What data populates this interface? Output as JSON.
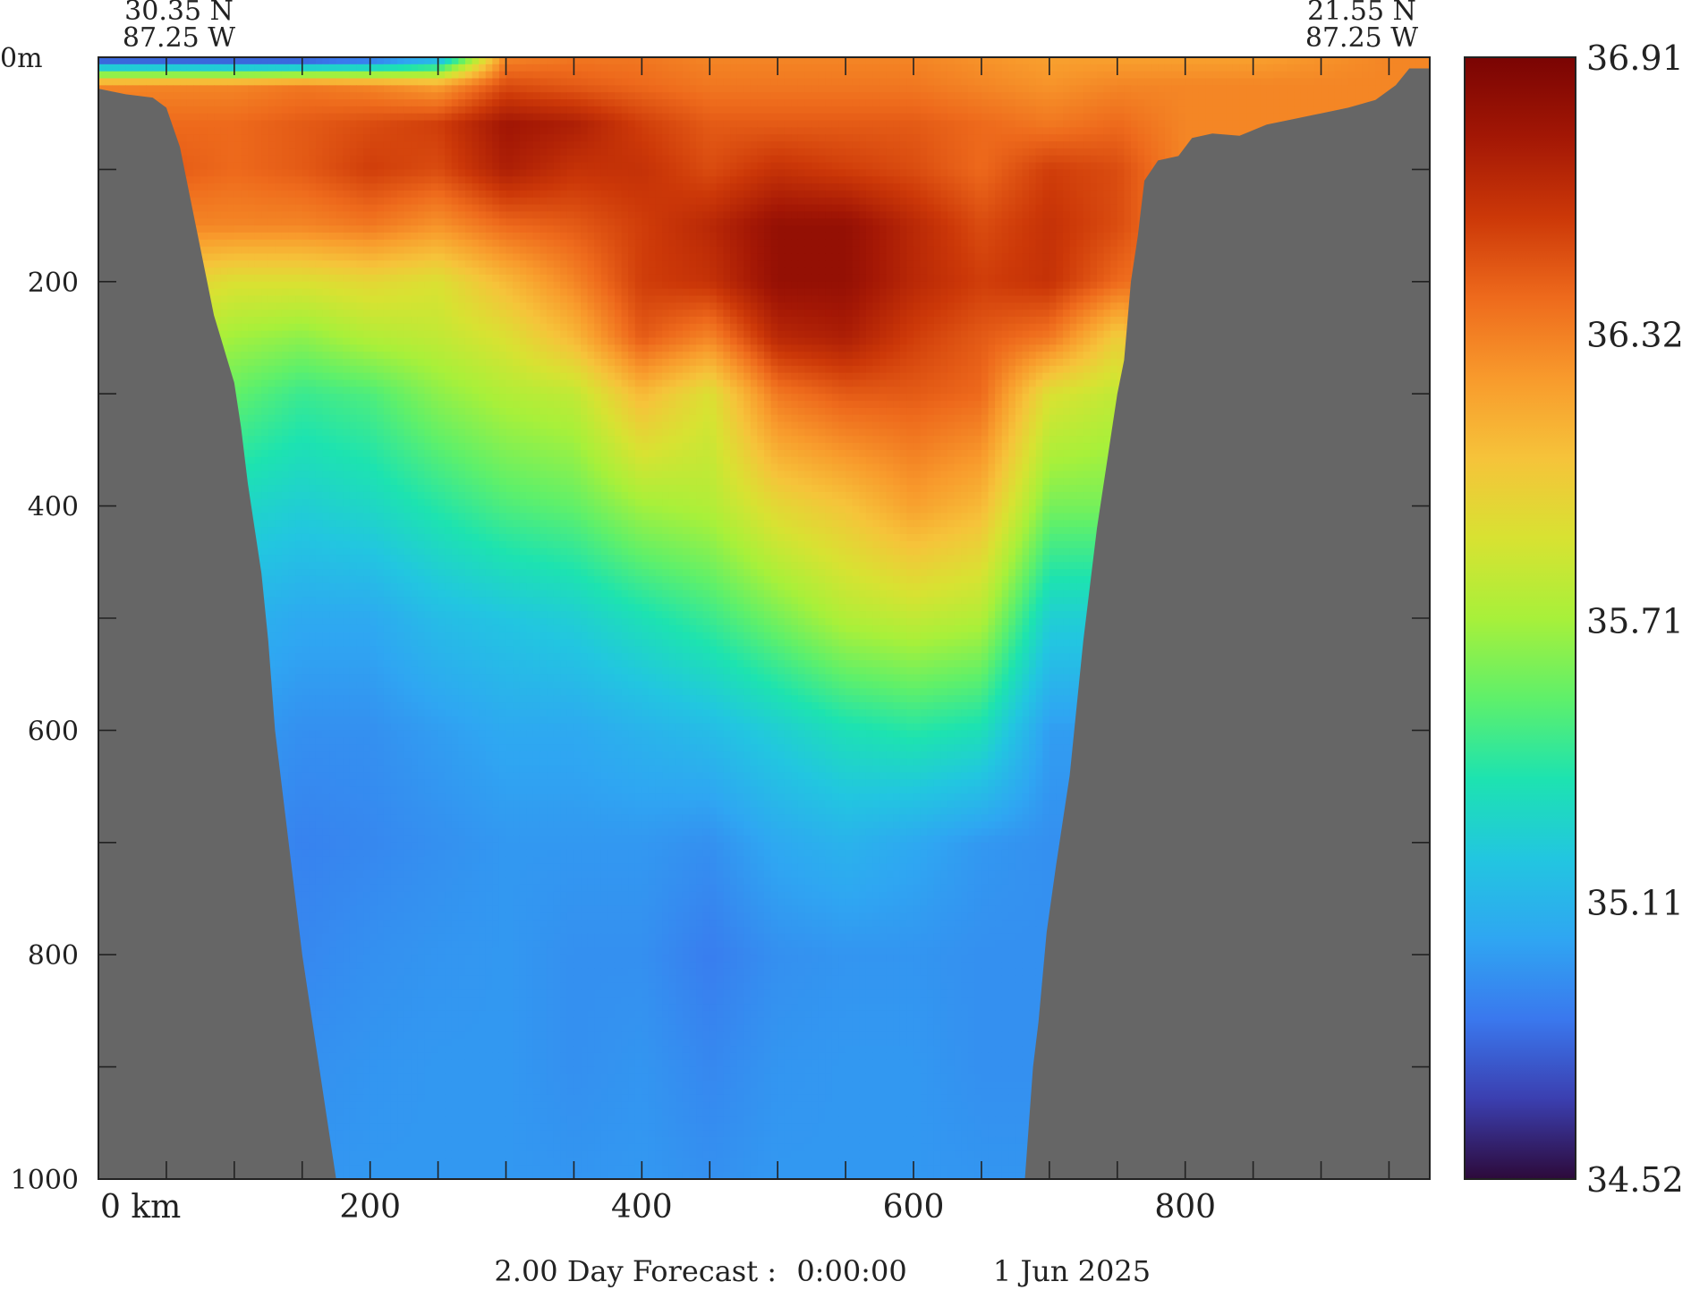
{
  "chart_data": {
    "type": "heatmap",
    "title": "",
    "xlabel": "",
    "ylabel": "",
    "x_unit_label": "km",
    "y_unit_label": "m",
    "xlim": [
      0,
      980
    ],
    "ylim": [
      0,
      1000
    ],
    "x_ticks": [
      0,
      200,
      400,
      600,
      800
    ],
    "x_minor_ticks": [
      50,
      100,
      150,
      250,
      300,
      350,
      450,
      500,
      550,
      650,
      700,
      750,
      850,
      900,
      950
    ],
    "y_ticks": [
      0,
      200,
      400,
      600,
      800,
      1000
    ],
    "y_minor_ticks": [
      100,
      300,
      500,
      700,
      900
    ],
    "endpoints": {
      "start": {
        "lat": "30.35 N",
        "lon": "87.25 W"
      },
      "end": {
        "lat": "21.55 N",
        "lon": "87.25 W"
      }
    },
    "colorbar": {
      "min": 34.52,
      "max": 36.91,
      "tick_labels": [
        "36.91",
        "36.32",
        "35.71",
        "35.11",
        "34.52"
      ],
      "tick_values": [
        36.91,
        36.32,
        35.71,
        35.11,
        34.52
      ],
      "colors": [
        "#2d0a3a",
        "#3b3fb0",
        "#3a78ee",
        "#2fa6f2",
        "#22c6e0",
        "#1de3b0",
        "#5ff06a",
        "#a8f03a",
        "#d8e232",
        "#f6c33a",
        "#f89a2c",
        "#ee6a1c",
        "#cc3808",
        "#a31705",
        "#7a0403"
      ]
    },
    "bottom_boundary_km_m": [
      [
        0,
        28
      ],
      [
        8,
        30
      ],
      [
        20,
        33
      ],
      [
        40,
        36
      ],
      [
        50,
        45
      ],
      [
        60,
        80
      ],
      [
        70,
        140
      ],
      [
        80,
        200
      ],
      [
        85,
        230
      ],
      [
        90,
        250
      ],
      [
        95,
        270
      ],
      [
        100,
        290
      ],
      [
        105,
        330
      ],
      [
        110,
        380
      ],
      [
        115,
        420
      ],
      [
        120,
        460
      ],
      [
        125,
        520
      ],
      [
        130,
        600
      ],
      [
        140,
        700
      ],
      [
        150,
        800
      ],
      [
        160,
        880
      ],
      [
        170,
        960
      ],
      [
        175,
        1000
      ]
    ],
    "right_boundary_km_m": [
      [
        682,
        1000
      ],
      [
        688,
        900
      ],
      [
        692,
        860
      ],
      [
        698,
        780
      ],
      [
        705,
        720
      ],
      [
        710,
        680
      ],
      [
        715,
        640
      ],
      [
        720,
        580
      ],
      [
        725,
        520
      ],
      [
        730,
        470
      ],
      [
        735,
        420
      ],
      [
        740,
        380
      ],
      [
        745,
        340
      ],
      [
        750,
        300
      ],
      [
        755,
        270
      ],
      [
        760,
        200
      ],
      [
        765,
        160
      ],
      [
        770,
        110
      ],
      [
        780,
        92
      ],
      [
        795,
        88
      ],
      [
        805,
        72
      ],
      [
        820,
        68
      ],
      [
        840,
        70
      ],
      [
        860,
        60
      ],
      [
        880,
        55
      ],
      [
        900,
        50
      ],
      [
        920,
        45
      ],
      [
        940,
        38
      ],
      [
        955,
        25
      ],
      [
        965,
        10
      ],
      [
        980,
        10
      ]
    ],
    "salinity_field": {
      "x_km": [
        0,
        50,
        100,
        150,
        200,
        250,
        300,
        350,
        400,
        450,
        500,
        550,
        600,
        650,
        700,
        750,
        800,
        850,
        900,
        950,
        980
      ],
      "depth_m": [
        0,
        25,
        60,
        100,
        150,
        200,
        250,
        300,
        400,
        500,
        600,
        700,
        800,
        900,
        1000
      ],
      "values": [
        [
          34.6,
          34.6,
          34.6,
          34.6,
          34.7,
          35.0,
          36.3,
          36.35,
          36.35,
          36.3,
          36.3,
          36.3,
          36.3,
          36.25,
          36.2,
          36.2,
          36.2,
          36.2,
          36.25,
          36.3,
          36.3
        ],
        [
          36.3,
          36.3,
          36.3,
          36.35,
          36.3,
          36.2,
          36.5,
          36.45,
          36.4,
          36.35,
          36.35,
          36.35,
          36.35,
          36.3,
          36.25,
          36.3,
          36.3,
          36.3,
          36.3,
          36.3,
          36.3
        ],
        [
          36.35,
          36.4,
          36.4,
          36.45,
          36.5,
          36.55,
          36.75,
          36.7,
          36.55,
          36.45,
          36.45,
          36.45,
          36.45,
          36.4,
          36.35,
          36.4,
          36.3,
          36.3,
          36.3,
          36.3,
          36.3
        ],
        [
          36.4,
          36.45,
          36.4,
          36.45,
          36.55,
          36.5,
          36.7,
          36.6,
          36.6,
          36.5,
          36.6,
          36.55,
          36.5,
          36.4,
          36.55,
          36.5,
          36.3,
          36.3,
          36.3,
          36.3,
          36.3
        ],
        [
          36.3,
          36.3,
          36.3,
          36.3,
          36.35,
          36.25,
          36.4,
          36.45,
          36.55,
          36.65,
          36.8,
          36.8,
          36.65,
          36.5,
          36.6,
          36.5,
          36.3,
          36.3,
          36.3,
          36.3,
          36.3
        ],
        [
          36.0,
          36.0,
          35.9,
          35.9,
          35.95,
          35.9,
          36.1,
          36.3,
          36.55,
          36.6,
          36.8,
          36.8,
          36.65,
          36.55,
          36.6,
          36.4,
          36.3,
          36.3,
          36.3,
          36.3,
          36.3
        ],
        [
          35.8,
          35.8,
          35.7,
          35.65,
          35.75,
          35.8,
          35.9,
          36.1,
          36.45,
          36.3,
          36.65,
          36.7,
          36.55,
          36.45,
          36.35,
          36.0,
          36.3,
          36.3,
          36.3,
          36.3,
          36.3
        ],
        [
          35.6,
          35.6,
          35.55,
          35.45,
          35.5,
          35.65,
          35.75,
          35.8,
          36.1,
          35.9,
          36.35,
          36.45,
          36.45,
          36.4,
          35.9,
          35.8,
          36.3,
          36.3,
          36.3,
          36.3,
          36.3
        ],
        [
          35.3,
          35.3,
          35.3,
          35.25,
          35.3,
          35.4,
          35.5,
          35.55,
          35.7,
          35.75,
          35.95,
          36.05,
          36.2,
          36.1,
          35.6,
          35.6,
          36.3,
          36.3,
          36.3,
          36.3,
          36.3
        ],
        [
          35.1,
          35.1,
          35.1,
          35.05,
          35.05,
          35.15,
          35.2,
          35.25,
          35.35,
          35.45,
          35.6,
          35.75,
          35.8,
          35.75,
          35.25,
          35.25,
          36.3,
          36.3,
          36.3,
          36.3,
          36.3
        ],
        [
          35.0,
          35.0,
          35.0,
          34.95,
          34.95,
          35.0,
          35.05,
          35.05,
          35.1,
          35.15,
          35.25,
          35.35,
          35.4,
          35.35,
          35.0,
          35.0,
          36.3,
          36.3,
          36.3,
          36.3,
          36.3
        ],
        [
          34.95,
          34.95,
          34.95,
          34.9,
          34.92,
          34.95,
          34.98,
          34.98,
          34.98,
          34.95,
          35.05,
          35.1,
          35.05,
          34.98,
          34.95,
          34.95,
          36.3,
          36.3,
          36.3,
          36.3,
          36.3
        ],
        [
          34.95,
          34.95,
          34.95,
          34.92,
          34.95,
          34.97,
          34.98,
          34.95,
          34.95,
          34.88,
          34.95,
          34.97,
          34.97,
          34.95,
          34.95,
          34.95,
          36.3,
          36.3,
          36.3,
          36.3,
          36.3
        ],
        [
          34.95,
          34.95,
          34.95,
          34.95,
          34.97,
          34.98,
          34.98,
          34.95,
          34.97,
          34.92,
          34.97,
          34.98,
          34.98,
          34.95,
          34.95,
          34.95,
          36.3,
          36.3,
          36.3,
          36.3,
          36.3
        ],
        [
          34.97,
          34.97,
          34.97,
          34.97,
          34.98,
          34.98,
          34.98,
          34.97,
          34.98,
          34.95,
          34.98,
          34.98,
          34.98,
          34.97,
          34.97,
          34.97,
          36.3,
          36.3,
          36.3,
          36.3,
          36.3
        ]
      ]
    },
    "land_color": "#666666",
    "footer": {
      "forecast_label": "2.00 Day Forecast :",
      "time": "0:00:00",
      "date": "1 Jun 2025"
    }
  }
}
